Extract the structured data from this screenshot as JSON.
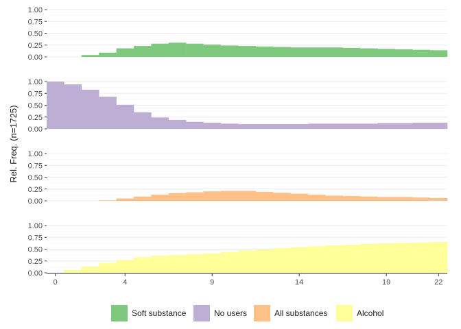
{
  "chart_data": {
    "type": "area",
    "ylabel": "Rel. Freq. (n=1725)",
    "xlabel": "",
    "x_ticks": [
      0,
      4,
      9,
      14,
      19,
      22
    ],
    "y_ticks": [
      0,
      0.25,
      0.5,
      0.75,
      1
    ],
    "y_tick_labels": [
      "0.00",
      "0.25",
      "0.50",
      "0.75",
      "1.00"
    ],
    "xlim": [
      -0.5,
      22.5
    ],
    "ylim": [
      0,
      1
    ],
    "grid": true,
    "legend_position": "bottom",
    "x": [
      0,
      1,
      2,
      3,
      4,
      5,
      6,
      7,
      8,
      9,
      10,
      11,
      12,
      13,
      14,
      15,
      16,
      17,
      18,
      19,
      20,
      21,
      22
    ],
    "series": [
      {
        "name": "Soft substance",
        "color": "#7fc97f",
        "values": [
          0,
          0,
          0.04,
          0.09,
          0.18,
          0.23,
          0.28,
          0.3,
          0.28,
          0.26,
          0.24,
          0.23,
          0.22,
          0.21,
          0.2,
          0.2,
          0.2,
          0.19,
          0.18,
          0.17,
          0.16,
          0.15,
          0.14
        ]
      },
      {
        "name": "No users",
        "color": "#beaed4",
        "values": [
          1.0,
          0.94,
          0.83,
          0.68,
          0.51,
          0.35,
          0.24,
          0.19,
          0.15,
          0.13,
          0.11,
          0.1,
          0.1,
          0.1,
          0.1,
          0.11,
          0.11,
          0.11,
          0.11,
          0.12,
          0.12,
          0.13,
          0.13
        ]
      },
      {
        "name": "All substances",
        "color": "#fdc086",
        "values": [
          0,
          0,
          0,
          0.01,
          0.05,
          0.09,
          0.13,
          0.16,
          0.18,
          0.2,
          0.21,
          0.21,
          0.19,
          0.17,
          0.15,
          0.13,
          0.11,
          0.1,
          0.09,
          0.08,
          0.08,
          0.07,
          0.06
        ]
      },
      {
        "name": "Alcohol",
        "color": "#ffff99",
        "values": [
          0,
          0.06,
          0.13,
          0.21,
          0.27,
          0.33,
          0.36,
          0.37,
          0.39,
          0.41,
          0.44,
          0.47,
          0.49,
          0.52,
          0.54,
          0.56,
          0.58,
          0.59,
          0.61,
          0.62,
          0.63,
          0.64,
          0.65
        ]
      }
    ]
  }
}
